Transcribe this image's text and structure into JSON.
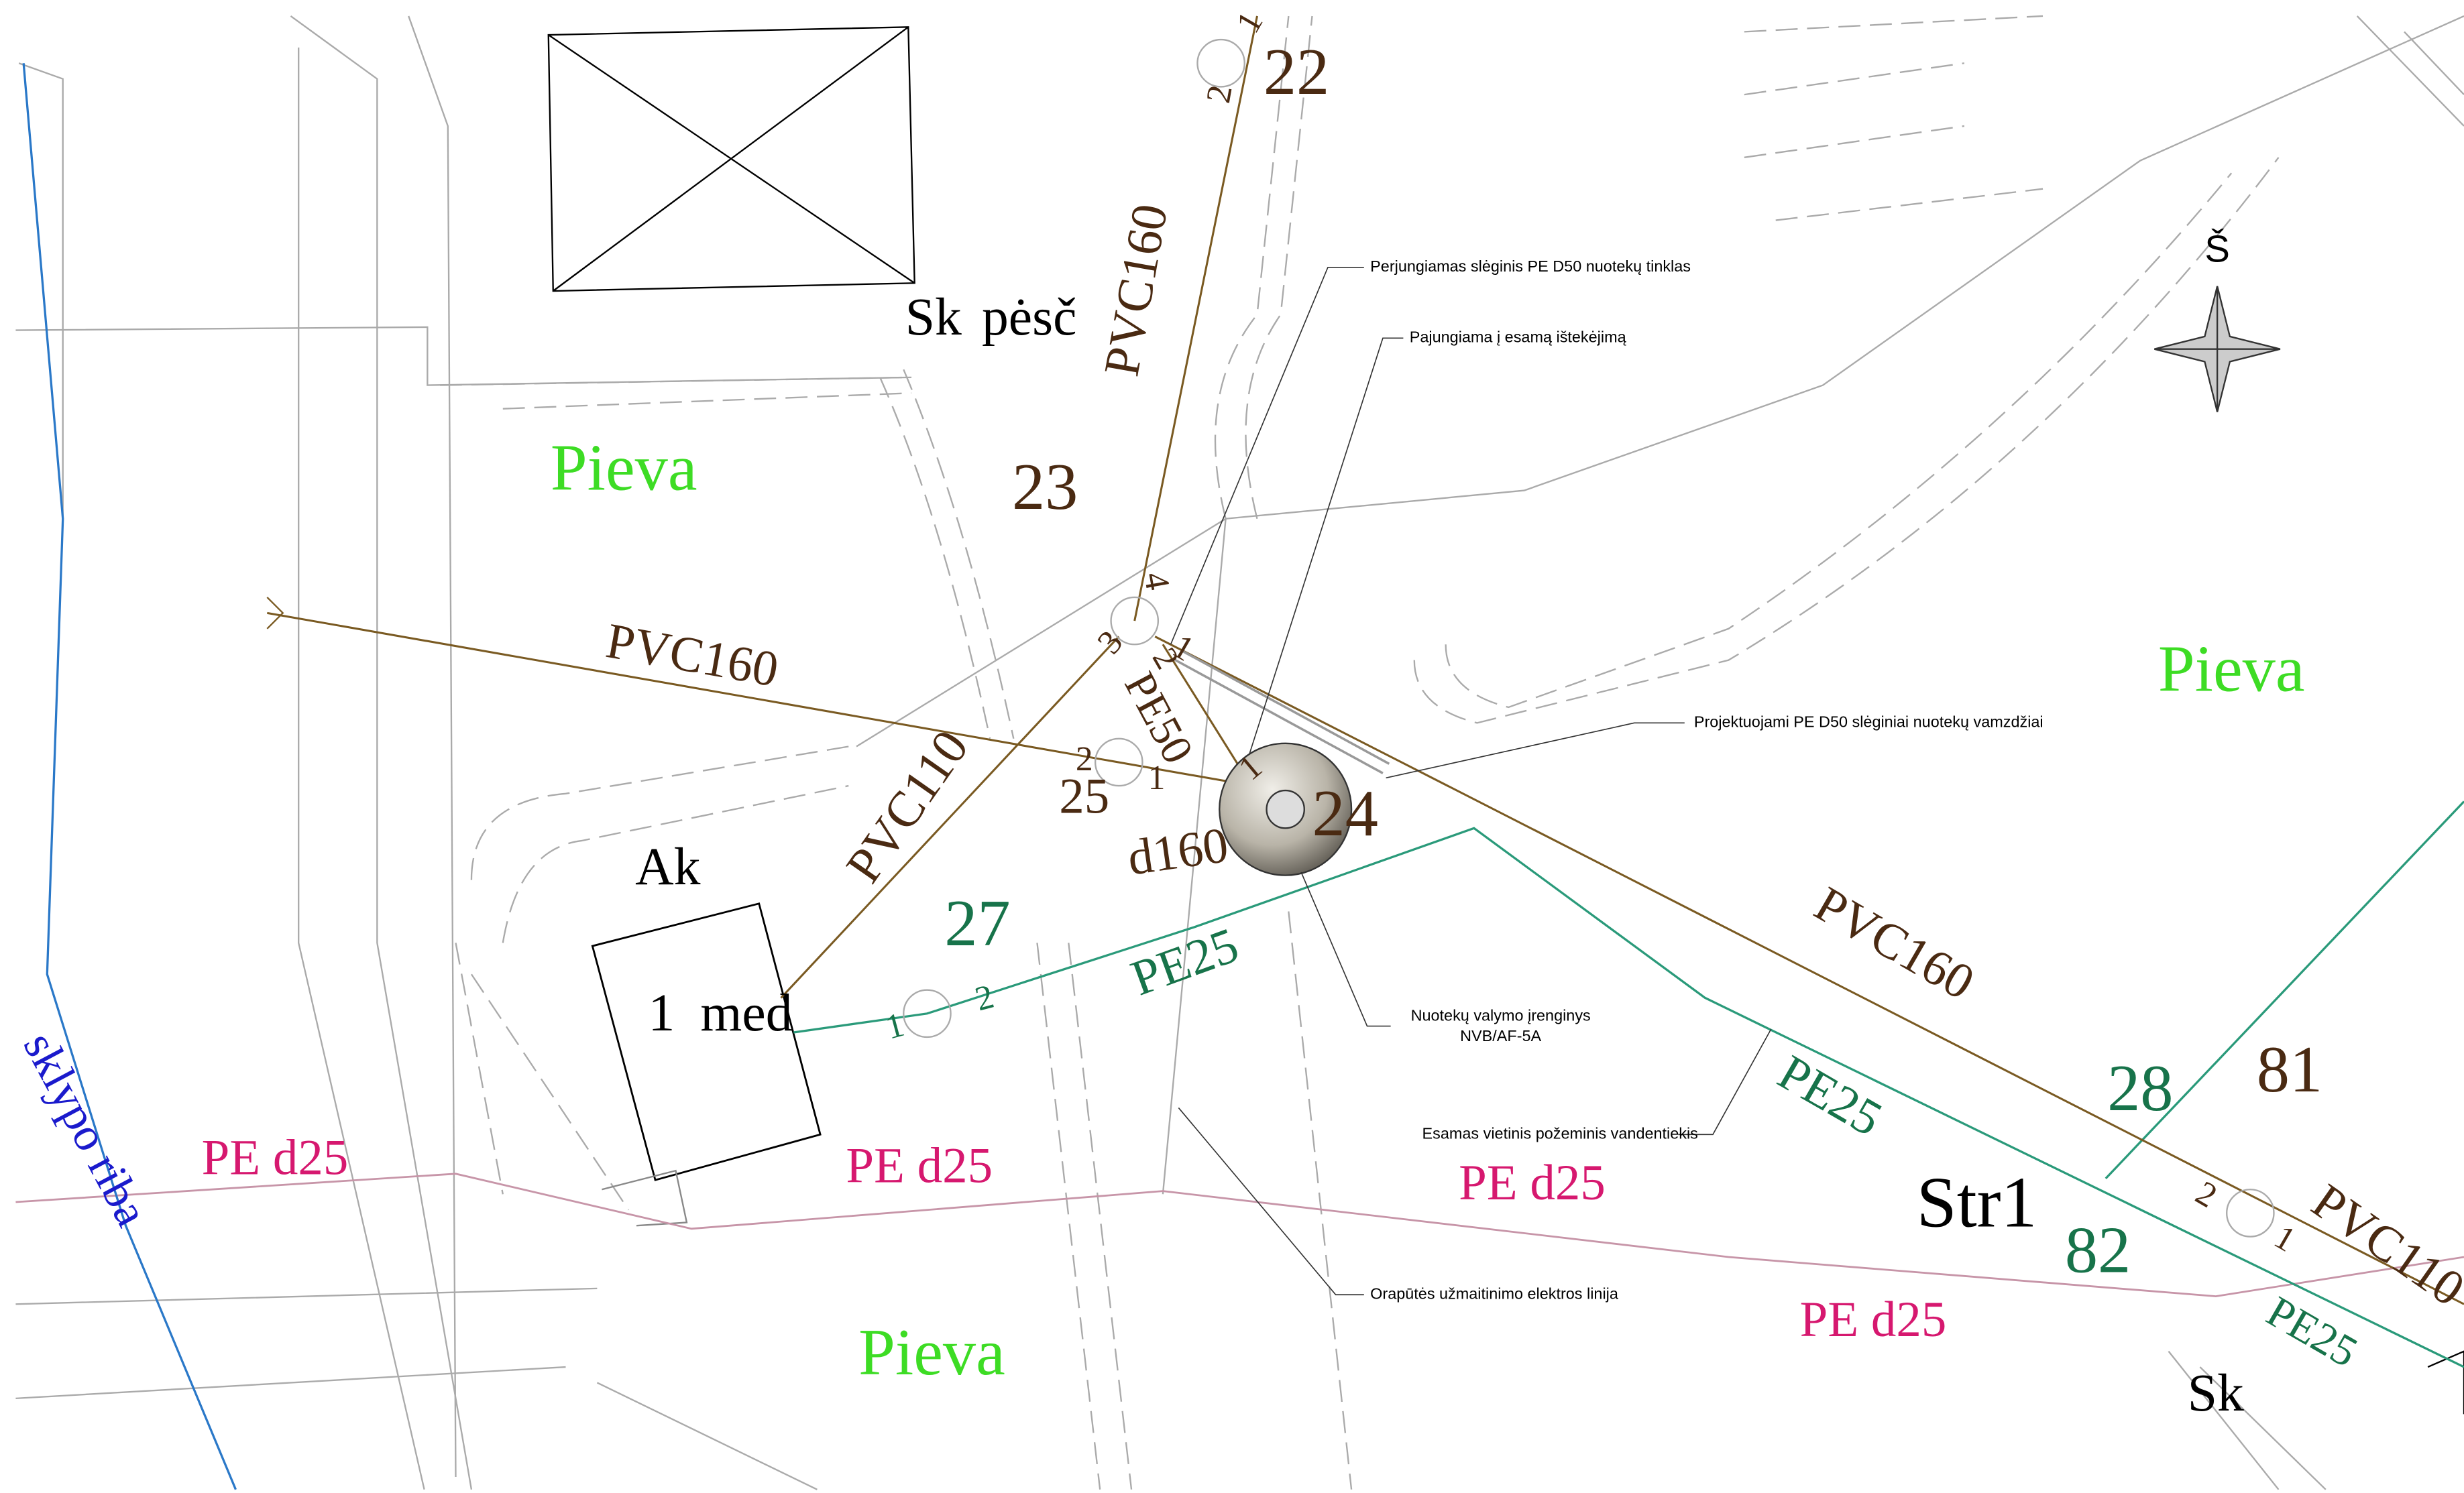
{
  "wells": [
    "22",
    "23",
    "24",
    "25",
    "27",
    "28",
    "81",
    "82"
  ],
  "pipes": [
    "PVC160",
    "PVC160",
    "PVC160",
    "PVC110",
    "PVC110",
    "PE50",
    "d160",
    "PE25",
    "PE25",
    "PE25"
  ],
  "pressure_pipes": [
    "PE d25",
    "PE d25",
    "PE d25",
    "PE d25"
  ],
  "areas": [
    "Pieva",
    "Pieva",
    "Pieva"
  ],
  "buildings": [
    "Sk",
    "pėsč",
    "Ak",
    "1",
    "med",
    "Str1",
    "Sk"
  ],
  "boundary": "sklypo riba",
  "north": "Š",
  "node_numbers": [
    "1",
    "2",
    "4",
    "3",
    "2",
    "1",
    "2",
    "1",
    "1",
    "1",
    "2",
    "2",
    "1"
  ],
  "annotations": [
    "Perjungiamas slėginis PE D50 nuotekų tinklas",
    "Pajungiama į esamą ištekėjimą",
    "Projektuojami PE D50 slėginiai nuotekų vamzdžiai",
    "Nuotekų valymo įrenginys",
    "NVB/AF-5A",
    "Esamas vietinis požeminis vandentiekis",
    "Orapūtės užmaitinimo elektros linija"
  ]
}
